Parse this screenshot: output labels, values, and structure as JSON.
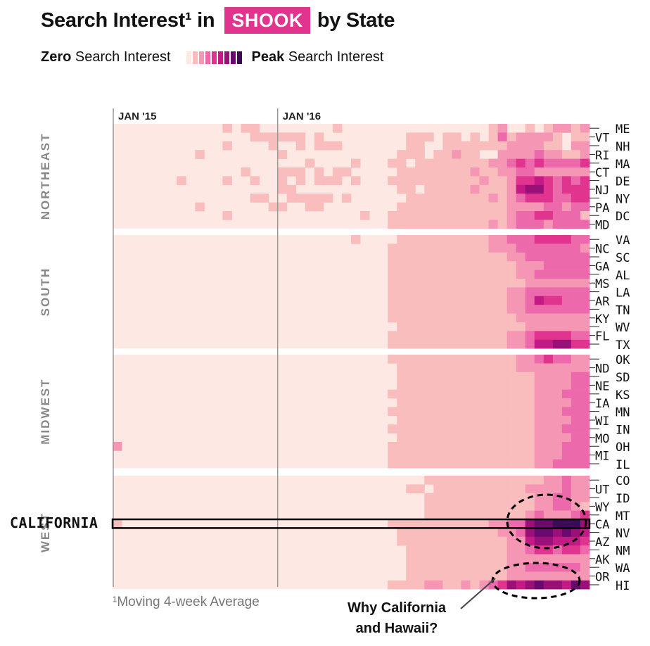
{
  "header": {
    "title_prefix": "Search Interest¹ in",
    "title_highlight": "SHOOK",
    "title_suffix": "by State"
  },
  "legend": {
    "zero_bold": "Zero",
    "zero_text": "Search Interest",
    "peak_bold": "Peak",
    "peak_text": "Search Interest",
    "scale_colors": [
      "#fde8e4",
      "#f9bdbd",
      "#f596b4",
      "#ec6aab",
      "#e0348f",
      "#c41a85",
      "#9a1078",
      "#6b0a6e",
      "#3d0a5a"
    ]
  },
  "annotations": {
    "footnote": "¹Moving 4-week Average",
    "why_line1": "Why California",
    "why_line2": "and Hawaii?",
    "highlight_label": "CALIFORNIA"
  },
  "chart_data": {
    "type": "heatmap",
    "title": "Search Interest in SHOOK by State",
    "x_tick_labels": [
      "JAN '15",
      "JAN '16"
    ],
    "value_scale": "0 = zero search interest, 8 = peak search interest",
    "weeks_per_row": 52,
    "regions": [
      {
        "name": "NORTHEAST",
        "left_labels": [
          "VT",
          "RI",
          "CT",
          "NJ",
          "PA",
          "MD"
        ],
        "right_labels": [
          "ME",
          "NH",
          "MA",
          "DE",
          "NY",
          "DC"
        ],
        "states": [
          "ME",
          "VT",
          "NH",
          "RI",
          "MA",
          "CT",
          "DE",
          "NJ",
          "NY",
          "PA",
          "DC",
          "MD"
        ]
      },
      {
        "name": "SOUTH",
        "left_labels": [
          "NC",
          "GA",
          "MS",
          "AR",
          "KY",
          "FL"
        ],
        "right_labels": [
          "VA",
          "SC",
          "AL",
          "LA",
          "TN",
          "WV",
          "TX"
        ],
        "states": [
          "VA",
          "NC",
          "SC",
          "GA",
          "AL",
          "MS",
          "LA",
          "AR",
          "TN",
          "KY",
          "WV",
          "FL",
          "TX"
        ]
      },
      {
        "name": "MIDWEST",
        "left_labels": [
          "ND",
          "NE",
          "IA",
          "WI",
          "MO",
          "MI"
        ],
        "right_labels": [
          "OK",
          "SD",
          "KS",
          "MN",
          "IN",
          "OH",
          "IL"
        ],
        "states": [
          "OK",
          "ND",
          "SD",
          "NE",
          "KS",
          "IA",
          "MN",
          "WI",
          "IN",
          "MO",
          "OH",
          "MI",
          "IL"
        ]
      },
      {
        "name": "WEST",
        "left_labels": [
          "UT",
          "WY",
          "CA",
          "AZ",
          "AK",
          "OR"
        ],
        "right_labels": [
          "CO",
          "ID",
          "MT",
          "NV",
          "NM",
          "WA",
          "HI"
        ],
        "states": [
          "CO",
          "UT",
          "ID",
          "WY",
          "MT",
          "CA",
          "NV",
          "AZ",
          "NM",
          "AK",
          "WA",
          "OR",
          "HI"
        ]
      }
    ],
    "highlighted_states": [
      "CA",
      "HI"
    ],
    "values": {
      "ME": "0000000000001011000000001000000000000000012001012212",
      "VT": "0000000000000001111110100000000011101101013122221011",
      "NH": "0000000000001000010010111000000011001111111222211022",
      "RI": "0000000001000000001000000000000111011211002222322112",
      "MA": "0000000000000000000001000010001101111111122343433334",
      "CT": "0000000000000010001110101100000111111112112233222222",
      "DE": "0000000100001001001010111010001111111111211244543434",
      "NJ": "0000000000000000001100000000000110111112111256643444",
      "NY": "0000000000000001100111110100000011111111121234443344",
      "PA": "0000000001000000011001100000000111111111111222233233",
      "DC": "0000000000001000000000000001001111111111111233443331",
      "MD": "0000000000000000000000000000001111111111121233323333",
      "VA": "0000000000000000000000000010000111111111122333444433",
      "NC": "0000000000000000000000000000001111111111122233333332",
      "SC": "0000000000000000000000000000001111111111111223333333",
      "GA": "0000000000000000000000000000001111111111111122233333",
      "AL": "0000000000000000000000000000001111111111111122333333",
      "MS": "0000000000000000000000000000001111111111111112222222",
      "LA": "0000000000000000000000000000001111111111111223333333",
      "AR": "0000000000000000000000000000001111111111111223544333",
      "TN": "0000000000000000000000000000001111111111111223333333",
      "KY": "0000000000000000000000000000001111111111111122222222",
      "WV": "0000000000000000000000000000000111111111111112222222",
      "FL": "0000000000000000000000000000001111111111111223444433",
      "TX": "0000000000000000000000000000001111111111111223556644",
      "OK": "0000000000000000000000000000001111111111111122343322",
      "ND": "0000000000000000000000000000000111111111111122222222",
      "SD": "0000000000000000000000000000000111111111111111222233",
      "NE": "0000000000000000000000000000000111111111111111222233",
      "KS": "0000000000000000000000000000001111111111111111222333",
      "IA": "0000000000000000000000000000000111111111111111222233",
      "MN": "0000000000000000000000000000001111111111111111222333",
      "WI": "0000000000000000000000000000000111111111111111222233",
      "IN": "0000000000000000000000000000001111111111111111222333",
      "MO": "0000000000000000000000000000000111111111111111222233",
      "OH": "2000000000000000000000000000001111111111111111222333",
      "MI": "0000000000000000000000000000001111111111111111222333",
      "IL": "0000000000000000000000000000001111111111111111223333",
      "CO": "0000000000000000000000000000000000111111111111122322",
      "UT": "0000000000000000000000000000000011011111111112222322",
      "ID": "0000000000000000000000000000000000111111111111223322",
      "WY": "0000000000000000000000000000000000111111111111223321",
      "MT": "0000000000000000000000000000000000111111111112322234",
      "CA": "1000000000000000000000000000001111111111122336778886",
      "NV": "0000000000000000000000000000000111111111112236776765",
      "AZ": "0000000000000000000000000000000111111111111225665554",
      "NM": "0000000000000000000000000000000011111111111223443443",
      "AK": "0000000000000000000000000000000011111111111222222222",
      "WA": "0000000000000000000000000000000011111111111223333332",
      "OR": "0000000000000000000000000000000011111111111222222222",
      "HI": "0000000000000000000000000000001111221121234656766576"
    }
  }
}
